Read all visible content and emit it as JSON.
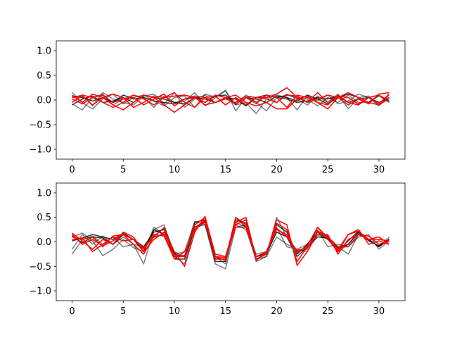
{
  "chart_data": [
    {
      "type": "line",
      "title": "",
      "xlabel": "",
      "ylabel": "",
      "xlim": [
        -1.55,
        32.55
      ],
      "ylim": [
        -1.2,
        1.2
      ],
      "xticks": [
        0,
        5,
        10,
        15,
        20,
        25,
        30
      ],
      "xtick_labels": [
        "0",
        "5",
        "10",
        "15",
        "20",
        "25",
        "30"
      ],
      "yticks": [
        -1.0,
        -0.5,
        0.0,
        0.5,
        1.0
      ],
      "ytick_labels": [
        "−1.0",
        "−0.5",
        "0.0",
        "0.5",
        "1.0"
      ],
      "grid": false,
      "legend": "none",
      "series": [
        {
          "color": "#000000",
          "opacity": 0.5,
          "values": [
            0.15,
            -0.05,
            -0.18,
            0.02,
            0.12,
            -0.08,
            0.05,
            0.1,
            -0.02,
            -0.12,
            0.05,
            0.08,
            -0.15,
            0.12,
            0.06,
            0.2,
            -0.22,
            0.05,
            -0.08,
            0.1,
            -0.05,
            0.12,
            0.02,
            -0.1,
            0.08,
            -0.05,
            0.12,
            -0.18,
            0.05,
            0.08,
            -0.1,
            0.02
          ]
        },
        {
          "color": "#000000",
          "opacity": 0.5,
          "values": [
            -0.08,
            -0.2,
            0.05,
            0.12,
            -0.1,
            0.02,
            0.1,
            0.05,
            -0.15,
            0.08,
            -0.05,
            -0.02,
            0.15,
            -0.12,
            0.05,
            0.18,
            -0.1,
            -0.05,
            -0.28,
            0.02,
            0.1,
            0.05,
            -0.2,
            0.08,
            -0.02,
            0.1,
            -0.08,
            -0.02,
            0.12,
            0.05,
            -0.12,
            0.1
          ]
        },
        {
          "color": "#000000",
          "opacity": 0.5,
          "values": [
            0.05,
            0.1,
            -0.12,
            0.15,
            0.02,
            -0.05,
            -0.1,
            0.08,
            0.12,
            -0.08,
            0.15,
            -0.15,
            0.02,
            0.1,
            -0.05,
            0.05,
            -0.1,
            0.1,
            -0.05,
            -0.22,
            0.05,
            0.1,
            0.05,
            0.02,
            -0.12,
            0.05,
            -0.05,
            0.1,
            -0.05,
            -0.05,
            0.08,
            -0.05
          ]
        },
        {
          "color": "#000000",
          "opacity": 0.8,
          "values": [
            0.08,
            0.05,
            -0.02,
            0.05,
            -0.05,
            0.1,
            0.02,
            0.05,
            -0.02,
            -0.05,
            -0.08,
            0.02,
            0.05,
            -0.05,
            0.08,
            0.1,
            -0.08,
            0.05,
            0.02,
            -0.05,
            0.08,
            0.05,
            -0.02,
            0.1,
            0.02,
            -0.08,
            0.05,
            0.12,
            0.05,
            -0.05,
            0.1,
            -0.03
          ]
        },
        {
          "color": "#000000",
          "opacity": 0.8,
          "values": [
            -0.1,
            0.02,
            0.08,
            -0.05,
            -0.02,
            0.05,
            -0.05,
            0.1,
            0.05,
            0.02,
            -0.05,
            -0.08,
            0.05,
            0.02,
            -0.05,
            0.05,
            0.02,
            -0.12,
            0.05,
            0.1,
            0.05,
            0.02,
            -0.05,
            -0.02,
            0.05,
            0.02,
            0.08,
            -0.05,
            0.02,
            0.05,
            -0.05,
            0.05
          ]
        },
        {
          "color": "#ff0000",
          "opacity": 1.0,
          "values": [
            0.1,
            -0.05,
            0.12,
            0.05,
            -0.1,
            -0.2,
            -0.05,
            0.1,
            0.05,
            -0.1,
            -0.25,
            -0.1,
            0.05,
            -0.05,
            0.1,
            0.05,
            -0.08,
            0.05,
            -0.05,
            0.1,
            0.05,
            -0.15,
            0.1,
            0.05,
            -0.05,
            -0.1,
            0.1,
            -0.05,
            -0.1,
            0.05,
            -0.08,
            0.12
          ]
        },
        {
          "color": "#ff0000",
          "opacity": 1.0,
          "values": [
            0.05,
            0.08,
            -0.1,
            0.05,
            0.12,
            0.05,
            -0.15,
            -0.05,
            0.08,
            0.05,
            0.15,
            -0.05,
            -0.15,
            0.05,
            0.08,
            -0.1,
            0.05,
            -0.1,
            0.05,
            0.05,
            0.12,
            0.25,
            0.05,
            -0.05,
            0.15,
            -0.05,
            0.08,
            0.05,
            -0.08,
            0.05,
            0.1,
            -0.02
          ]
        },
        {
          "color": "#ff0000",
          "opacity": 1.0,
          "values": [
            -0.05,
            0.1,
            0.05,
            -0.05,
            -0.15,
            -0.05,
            0.1,
            0.02,
            -0.1,
            0.05,
            0.08,
            0.1,
            0.05,
            -0.1,
            -0.05,
            0.05,
            0.1,
            -0.05,
            -0.12,
            -0.05,
            -0.18,
            -0.18,
            0.02,
            0.08,
            -0.05,
            -0.18,
            0.05,
            0.15,
            0.05,
            -0.05,
            -0.1,
            0.05
          ]
        },
        {
          "color": "#ff0000",
          "opacity": 1.0,
          "values": [
            0.02,
            -0.08,
            0.05,
            0.1,
            -0.05,
            0.02,
            0.05,
            -0.1,
            0.02,
            0.12,
            -0.12,
            0.02,
            0.08,
            0.05,
            -0.05,
            0.02,
            -0.05,
            0.08,
            0.05,
            0.02,
            -0.05,
            0.1,
            0.08,
            -0.05,
            0.02,
            0.1,
            0.05,
            -0.1,
            0.02,
            -0.08,
            0.12,
            0.15
          ]
        }
      ]
    },
    {
      "type": "line",
      "title": "",
      "xlabel": "",
      "ylabel": "",
      "xlim": [
        -1.55,
        32.55
      ],
      "ylim": [
        -1.2,
        1.2
      ],
      "xticks": [
        0,
        5,
        10,
        15,
        20,
        25,
        30
      ],
      "xtick_labels": [
        "0",
        "5",
        "10",
        "15",
        "20",
        "25",
        "30"
      ],
      "yticks": [
        -1.0,
        -0.5,
        0.0,
        0.5,
        1.0
      ],
      "ytick_labels": [
        "−1.0",
        "−0.5",
        "0.0",
        "0.5",
        "1.0"
      ],
      "grid": false,
      "legend": "none",
      "series": [
        {
          "color": "#000000",
          "opacity": 0.5,
          "values": [
            -0.25,
            0.05,
            0.12,
            -0.05,
            0.1,
            -0.1,
            -0.05,
            -0.45,
            0.25,
            0.35,
            -0.3,
            -0.45,
            0.3,
            0.35,
            -0.45,
            -0.55,
            0.3,
            0.35,
            -0.4,
            -0.3,
            0.5,
            0.1,
            -0.2,
            -0.15,
            0.3,
            0.1,
            -0.1,
            -0.25,
            0.15,
            0.05,
            -0.1,
            0.05
          ]
        },
        {
          "color": "#000000",
          "opacity": 0.5,
          "values": [
            -0.15,
            0.15,
            -0.05,
            0.12,
            -0.05,
            0.1,
            -0.05,
            -0.1,
            0.1,
            0.3,
            -0.2,
            -0.3,
            0.25,
            0.4,
            -0.3,
            -0.45,
            0.4,
            0.3,
            -0.25,
            -0.2,
            0.3,
            -0.1,
            -0.15,
            -0.05,
            0.25,
            -0.1,
            -0.05,
            -0.1,
            0.1,
            0.15,
            -0.15,
            0.02
          ]
        },
        {
          "color": "#000000",
          "opacity": 0.5,
          "values": [
            0.1,
            0.18,
            0.02,
            -0.28,
            -0.15,
            0.05,
            -0.12,
            -0.2,
            0.3,
            0.15,
            -0.25,
            -0.2,
            0.42,
            0.35,
            -0.35,
            -0.35,
            0.35,
            0.25,
            -0.35,
            -0.3,
            0.1,
            -0.05,
            -0.15,
            -0.2,
            0.15,
            0.05,
            -0.2,
            -0.05,
            0.18,
            0.05,
            -0.1,
            0.1
          ]
        },
        {
          "color": "#000000",
          "opacity": 0.8,
          "values": [
            0.12,
            -0.02,
            0.1,
            0.08,
            -0.05,
            0.15,
            0.05,
            -0.1,
            0.2,
            0.25,
            -0.25,
            -0.3,
            0.4,
            0.45,
            -0.4,
            -0.4,
            0.45,
            0.38,
            -0.3,
            -0.22,
            0.35,
            0.2,
            -0.25,
            -0.05,
            0.2,
            0.05,
            -0.12,
            -0.05,
            0.2,
            0.02,
            -0.08,
            0.05
          ]
        },
        {
          "color": "#000000",
          "opacity": 0.8,
          "values": [
            0.02,
            0.08,
            0.15,
            0.1,
            0.05,
            0.18,
            0.05,
            -0.2,
            0.25,
            0.15,
            -0.35,
            -0.35,
            0.3,
            0.42,
            -0.35,
            -0.35,
            0.5,
            0.3,
            -0.3,
            -0.25,
            0.2,
            0.1,
            -0.3,
            -0.1,
            0.1,
            0.08,
            -0.18,
            0.02,
            0.22,
            0.05,
            -0.1,
            0.05
          ]
        },
        {
          "color": "#ff0000",
          "opacity": 1.0,
          "values": [
            0.18,
            0.02,
            -0.15,
            0.05,
            -0.05,
            0.2,
            0.1,
            -0.2,
            0.05,
            0.2,
            -0.2,
            -0.5,
            0.2,
            0.52,
            -0.3,
            -0.38,
            0.5,
            0.35,
            -0.35,
            -0.25,
            0.45,
            0.35,
            -0.48,
            -0.2,
            0.22,
            0.12,
            -0.2,
            0.15,
            0.25,
            -0.05,
            0.02,
            -0.05
          ]
        },
        {
          "color": "#ff0000",
          "opacity": 1.0,
          "values": [
            0.1,
            0.05,
            0.1,
            -0.1,
            0.12,
            0.15,
            -0.05,
            -0.25,
            0.12,
            0.28,
            -0.3,
            -0.3,
            0.35,
            0.5,
            -0.25,
            -0.3,
            0.4,
            0.5,
            -0.35,
            -0.25,
            0.38,
            0.25,
            -0.4,
            -0.1,
            0.15,
            0.15,
            -0.25,
            0.05,
            0.15,
            0.12,
            -0.05,
            0.02
          ]
        },
        {
          "color": "#ff0000",
          "opacity": 1.0,
          "values": [
            0.05,
            0.08,
            -0.2,
            -0.05,
            0.1,
            0.02,
            0.05,
            -0.15,
            0.15,
            0.12,
            -0.35,
            -0.2,
            0.25,
            0.45,
            -0.35,
            -0.35,
            0.35,
            0.45,
            -0.38,
            -0.2,
            0.25,
            0.15,
            -0.22,
            -0.08,
            0.3,
            0.05,
            -0.15,
            0.15,
            0.22,
            0.05,
            0.1,
            -0.05
          ]
        },
        {
          "color": "#ff0000",
          "opacity": 1.0,
          "values": [
            0.15,
            -0.05,
            0.05,
            -0.08,
            0.02,
            0.15,
            0.05,
            -0.12,
            0.1,
            0.15,
            -0.28,
            -0.28,
            0.3,
            0.4,
            -0.3,
            -0.32,
            0.3,
            0.3,
            -0.3,
            -0.2,
            0.28,
            0.1,
            -0.18,
            -0.12,
            0.2,
            0.1,
            -0.1,
            -0.1,
            0.15,
            0.05,
            0.05,
            0.02
          ]
        }
      ]
    }
  ]
}
